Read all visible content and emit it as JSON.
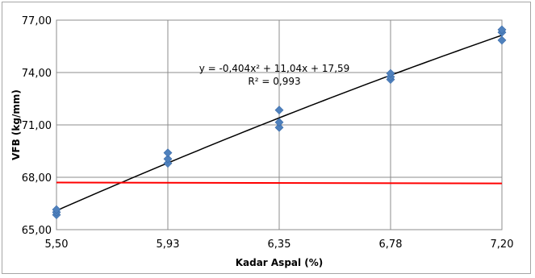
{
  "chart_data": {
    "type": "scatter",
    "title": "",
    "xlabel": "Kadar Aspal (%)",
    "ylabel": "VFB (kg/mm)",
    "xlim": [
      5.5,
      7.2
    ],
    "ylim": [
      65,
      77
    ],
    "x_ticks": [
      5.5,
      5.925,
      6.35,
      6.775,
      7.2
    ],
    "x_tick_labels": [
      "5,50",
      "5,93",
      "6,35",
      "6,78",
      "7,20"
    ],
    "y_ticks": [
      65,
      68,
      71,
      74,
      77
    ],
    "y_tick_labels": [
      "65,00",
      "68,00",
      "71,00",
      "74,00",
      "77,00"
    ],
    "grid": true,
    "series": [
      {
        "kind": "points",
        "color": "#4f81bd",
        "marker": "diamond",
        "points": [
          [
            5.5,
            65.85
          ],
          [
            5.5,
            66.0
          ],
          [
            5.5,
            66.15
          ],
          [
            5.925,
            68.8
          ],
          [
            5.925,
            69.05
          ],
          [
            5.925,
            69.4
          ],
          [
            6.35,
            70.85
          ],
          [
            6.35,
            71.15
          ],
          [
            6.35,
            71.85
          ],
          [
            6.775,
            73.6
          ],
          [
            6.775,
            73.75
          ],
          [
            6.775,
            73.95
          ],
          [
            7.2,
            75.85
          ],
          [
            7.2,
            76.3
          ],
          [
            7.2,
            76.45
          ]
        ]
      },
      {
        "kind": "trendline",
        "type": "polynomial",
        "coefficients": [
          -0.404,
          11.04,
          17.59
        ],
        "color": "#000000"
      },
      {
        "kind": "reference_line",
        "color": "#ff0000",
        "points": [
          [
            5.5,
            67.7
          ],
          [
            7.2,
            67.65
          ]
        ]
      }
    ],
    "annotations": {
      "equation": "y = -0,404x² + 11,04x + 17,59",
      "r_squared": "R² = 0,993"
    }
  }
}
